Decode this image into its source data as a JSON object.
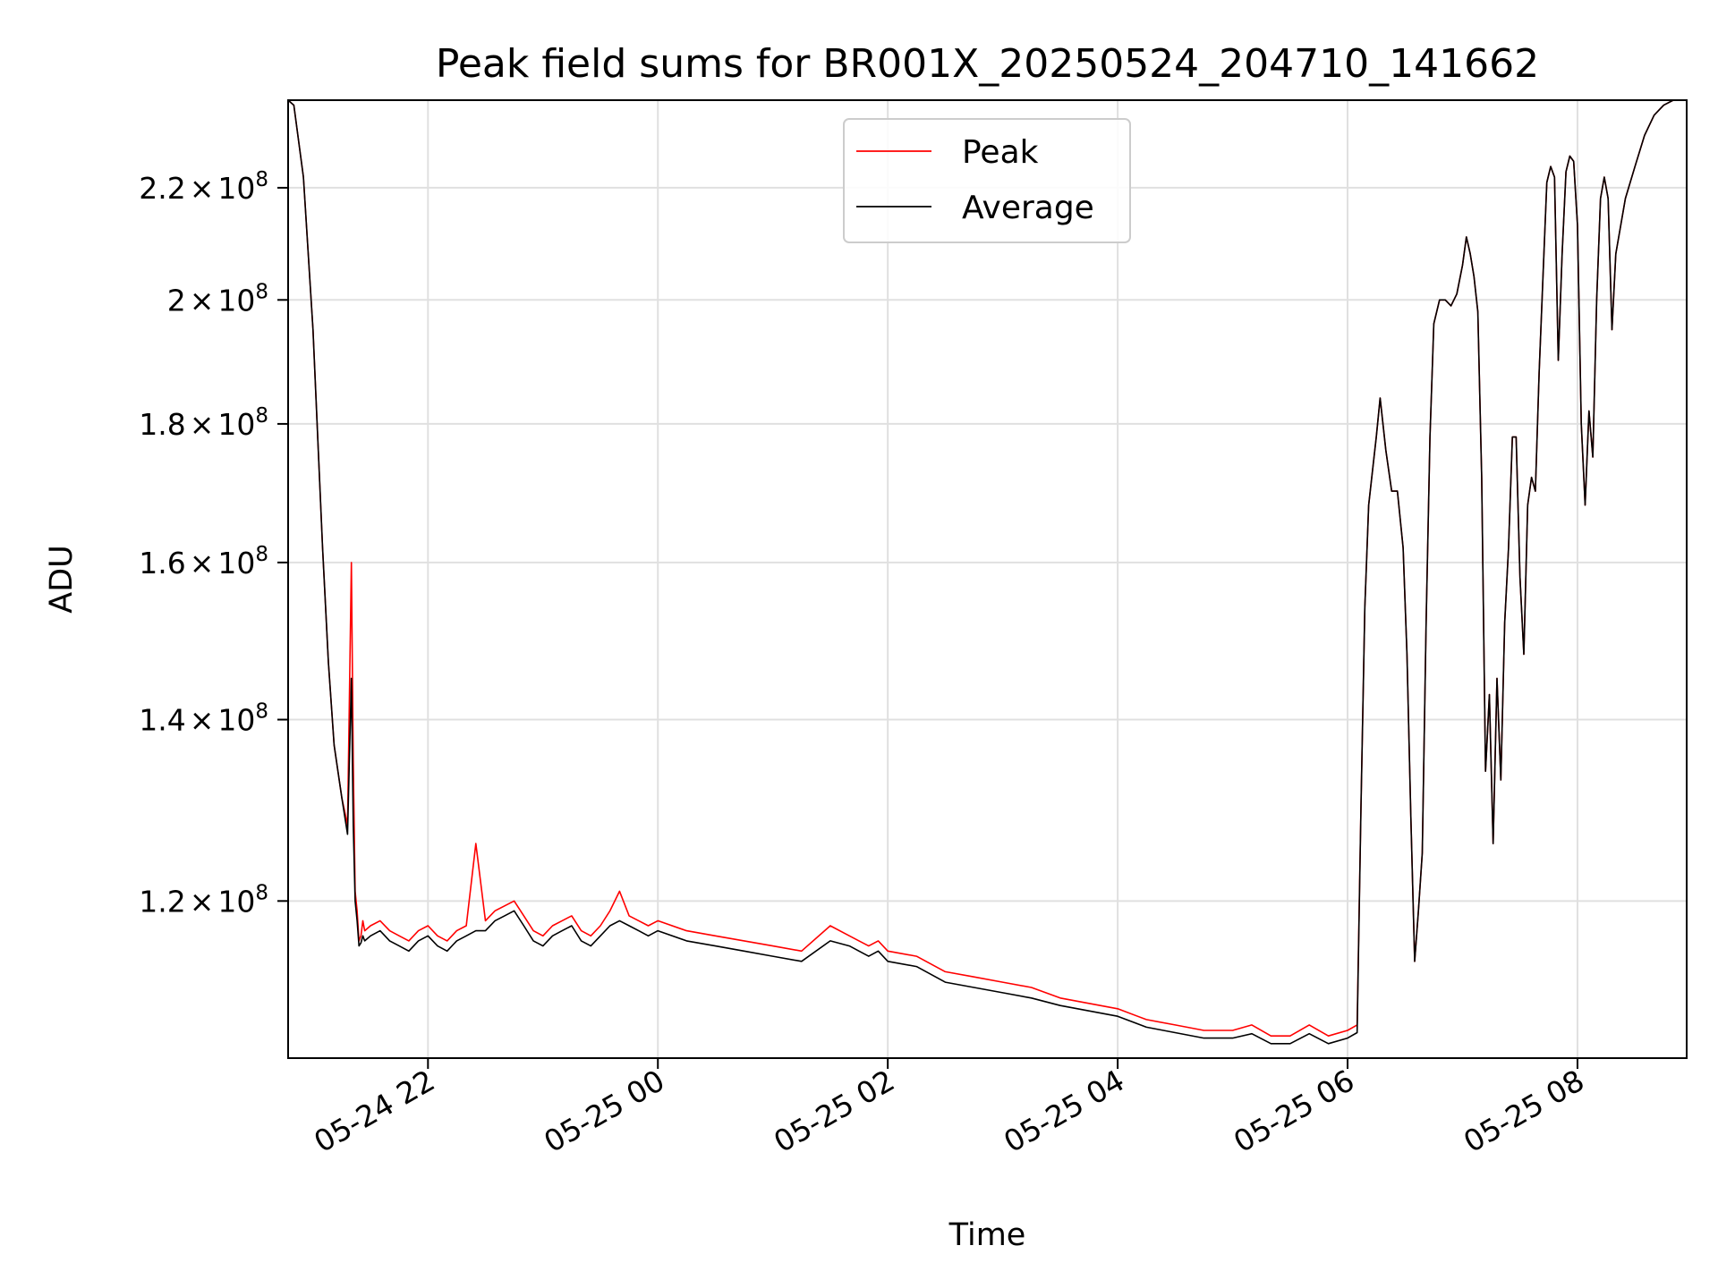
{
  "chart_data": {
    "type": "line",
    "title": "Peak field sums for BR001X_20250524_204710_141662",
    "xlabel": "Time",
    "ylabel": "ADU",
    "y_scale": "log",
    "xlim": [
      "2025-05-24 20:47",
      "2025-05-25 08:57"
    ],
    "ylim": [
      105000000,
      237000000
    ],
    "grid": true,
    "legend_placement": "upper center",
    "x_ticks": [
      "2025-05-24 22:00",
      "2025-05-25 00:00",
      "2025-05-25 02:00",
      "2025-05-25 04:00",
      "2025-05-25 06:00",
      "2025-05-25 08:00"
    ],
    "x_tick_labels": [
      "05-24 22",
      "05-25 00",
      "05-25 02",
      "05-25 04",
      "05-25 06",
      "05-25 08"
    ],
    "y_ticks": [
      {
        "value": 120000000,
        "mantissa": "1.2",
        "base": "10",
        "exp": "8"
      },
      {
        "value": 140000000,
        "mantissa": "1.4",
        "base": "10",
        "exp": "8"
      },
      {
        "value": 160000000,
        "mantissa": "1.6",
        "base": "10",
        "exp": "8"
      },
      {
        "value": 180000000,
        "mantissa": "1.8",
        "base": "10",
        "exp": "8"
      },
      {
        "value": 200000000,
        "mantissa": "2",
        "base": "10",
        "exp": "8"
      },
      {
        "value": 220000000,
        "mantissa": "2.2",
        "base": "10",
        "exp": "8"
      }
    ],
    "times_sep": "×",
    "series": [
      {
        "name": "Peak",
        "color": "#ff0000",
        "x": [
          "2025-05-24 20:47",
          "2025-05-24 20:50",
          "2025-05-24 20:55",
          "2025-05-24 21:00",
          "2025-05-24 21:05",
          "2025-05-24 21:08",
          "2025-05-24 21:11",
          "2025-05-24 21:15",
          "2025-05-24 21:18",
          "2025-05-24 21:20",
          "2025-05-24 21:21",
          "2025-05-24 21:22",
          "2025-05-24 21:23",
          "2025-05-24 21:24",
          "2025-05-24 21:25",
          "2025-05-24 21:26",
          "2025-05-24 21:27",
          "2025-05-24 21:30",
          "2025-05-24 21:35",
          "2025-05-24 21:40",
          "2025-05-24 21:45",
          "2025-05-24 21:50",
          "2025-05-24 21:55",
          "2025-05-24 22:00",
          "2025-05-24 22:05",
          "2025-05-24 22:10",
          "2025-05-24 22:15",
          "2025-05-24 22:20",
          "2025-05-24 22:25",
          "2025-05-24 22:30",
          "2025-05-24 22:35",
          "2025-05-24 22:40",
          "2025-05-24 22:45",
          "2025-05-24 22:50",
          "2025-05-24 22:55",
          "2025-05-24 23:00",
          "2025-05-24 23:05",
          "2025-05-24 23:10",
          "2025-05-24 23:15",
          "2025-05-24 23:20",
          "2025-05-24 23:25",
          "2025-05-24 23:30",
          "2025-05-24 23:35",
          "2025-05-24 23:40",
          "2025-05-24 23:45",
          "2025-05-24 23:50",
          "2025-05-24 23:55",
          "2025-05-25 00:00",
          "2025-05-25 00:15",
          "2025-05-25 00:30",
          "2025-05-25 00:45",
          "2025-05-25 01:00",
          "2025-05-25 01:15",
          "2025-05-25 01:30",
          "2025-05-25 01:40",
          "2025-05-25 01:45",
          "2025-05-25 01:50",
          "2025-05-25 01:55",
          "2025-05-25 02:00",
          "2025-05-25 02:15",
          "2025-05-25 02:30",
          "2025-05-25 02:45",
          "2025-05-25 03:00",
          "2025-05-25 03:15",
          "2025-05-25 03:30",
          "2025-05-25 03:45",
          "2025-05-25 04:00",
          "2025-05-25 04:15",
          "2025-05-25 04:30",
          "2025-05-25 04:45",
          "2025-05-25 05:00",
          "2025-05-25 05:10",
          "2025-05-25 05:20",
          "2025-05-25 05:30",
          "2025-05-25 05:40",
          "2025-05-25 05:50",
          "2025-05-25 06:00",
          "2025-05-25 06:05",
          "2025-05-25 06:07",
          "2025-05-25 06:09",
          "2025-05-25 06:11",
          "2025-05-25 06:13",
          "2025-05-25 06:15",
          "2025-05-25 06:17",
          "2025-05-25 06:20",
          "2025-05-25 06:23",
          "2025-05-25 06:26",
          "2025-05-25 06:29",
          "2025-05-25 06:31",
          "2025-05-25 06:33",
          "2025-05-25 06:35",
          "2025-05-25 06:37",
          "2025-05-25 06:39",
          "2025-05-25 06:41",
          "2025-05-25 06:43",
          "2025-05-25 06:45",
          "2025-05-25 06:48",
          "2025-05-25 06:51",
          "2025-05-25 06:54",
          "2025-05-25 06:57",
          "2025-05-25 07:00",
          "2025-05-25 07:02",
          "2025-05-25 07:04",
          "2025-05-25 07:06",
          "2025-05-25 07:08",
          "2025-05-25 07:10",
          "2025-05-25 07:12",
          "2025-05-25 07:14",
          "2025-05-25 07:16",
          "2025-05-25 07:18",
          "2025-05-25 07:20",
          "2025-05-25 07:22",
          "2025-05-25 07:24",
          "2025-05-25 07:26",
          "2025-05-25 07:28",
          "2025-05-25 07:30",
          "2025-05-25 07:32",
          "2025-05-25 07:34",
          "2025-05-25 07:36",
          "2025-05-25 07:38",
          "2025-05-25 07:40",
          "2025-05-25 07:42",
          "2025-05-25 07:44",
          "2025-05-25 07:46",
          "2025-05-25 07:48",
          "2025-05-25 07:50",
          "2025-05-25 07:52",
          "2025-05-25 07:54",
          "2025-05-25 07:56",
          "2025-05-25 07:58",
          "2025-05-25 08:00",
          "2025-05-25 08:02",
          "2025-05-25 08:04",
          "2025-05-25 08:06",
          "2025-05-25 08:08",
          "2025-05-25 08:10",
          "2025-05-25 08:12",
          "2025-05-25 08:14",
          "2025-05-25 08:16",
          "2025-05-25 08:18",
          "2025-05-25 08:20",
          "2025-05-25 08:25",
          "2025-05-25 08:30",
          "2025-05-25 08:35",
          "2025-05-25 08:40",
          "2025-05-25 08:45",
          "2025-05-25 08:50",
          "2025-05-25 08:55"
        ],
        "values": [
          237000000,
          236000000,
          222000000,
          195000000,
          162000000,
          147000000,
          137000000,
          131000000,
          128000000,
          160000000,
          135000000,
          121000000,
          119000000,
          116000000,
          116500000,
          118000000,
          117000000,
          117500000,
          118000000,
          117000000,
          116500000,
          116000000,
          117000000,
          117500000,
          116500000,
          116000000,
          117000000,
          117500000,
          126000000,
          118000000,
          119000000,
          119500000,
          120000000,
          118500000,
          117000000,
          116500000,
          117500000,
          118000000,
          118500000,
          117000000,
          116500000,
          117500000,
          119000000,
          121000000,
          118500000,
          118000000,
          117500000,
          118000000,
          117000000,
          116500000,
          116000000,
          115500000,
          115000000,
          117500000,
          116500000,
          116000000,
          115500000,
          116000000,
          115000000,
          114500000,
          113000000,
          112500000,
          112000000,
          111500000,
          110500000,
          110000000,
          109500000,
          108500000,
          108000000,
          107500000,
          107500000,
          108000000,
          107000000,
          107000000,
          108000000,
          107000000,
          107500000,
          108000000,
          130000000,
          154000000,
          168000000,
          173000000,
          178000000,
          184000000,
          176000000,
          170000000,
          170000000,
          162000000,
          148000000,
          129000000,
          114000000,
          119000000,
          125000000,
          152000000,
          178000000,
          196000000,
          200000000,
          200000000,
          199000000,
          201000000,
          206000000,
          211000000,
          208000000,
          204000000,
          198000000,
          172000000,
          134000000,
          143000000,
          126000000,
          145000000,
          133000000,
          152000000,
          162000000,
          178000000,
          178000000,
          158000000,
          148000000,
          168000000,
          172000000,
          170000000,
          188000000,
          204000000,
          221000000,
          224000000,
          222000000,
          190000000,
          208000000,
          223000000,
          226000000,
          225000000,
          213000000,
          180000000,
          168000000,
          182000000,
          175000000,
          200000000,
          218000000,
          222000000,
          218000000,
          195000000,
          208000000,
          218000000,
          224000000,
          230000000,
          234000000,
          236000000,
          237000000,
          238000000
        ]
      },
      {
        "name": "Average",
        "color": "#000000",
        "x": [
          "2025-05-24 20:47",
          "2025-05-24 20:50",
          "2025-05-24 20:55",
          "2025-05-24 21:00",
          "2025-05-24 21:05",
          "2025-05-24 21:08",
          "2025-05-24 21:11",
          "2025-05-24 21:15",
          "2025-05-24 21:18",
          "2025-05-24 21:20",
          "2025-05-24 21:21",
          "2025-05-24 21:22",
          "2025-05-24 21:23",
          "2025-05-24 21:24",
          "2025-05-24 21:25",
          "2025-05-24 21:26",
          "2025-05-24 21:27",
          "2025-05-24 21:30",
          "2025-05-24 21:35",
          "2025-05-24 21:40",
          "2025-05-24 21:45",
          "2025-05-24 21:50",
          "2025-05-24 21:55",
          "2025-05-24 22:00",
          "2025-05-24 22:05",
          "2025-05-24 22:10",
          "2025-05-24 22:15",
          "2025-05-24 22:20",
          "2025-05-24 22:25",
          "2025-05-24 22:30",
          "2025-05-24 22:35",
          "2025-05-24 22:40",
          "2025-05-24 22:45",
          "2025-05-24 22:50",
          "2025-05-24 22:55",
          "2025-05-24 23:00",
          "2025-05-24 23:05",
          "2025-05-24 23:10",
          "2025-05-24 23:15",
          "2025-05-24 23:20",
          "2025-05-24 23:25",
          "2025-05-24 23:30",
          "2025-05-24 23:35",
          "2025-05-24 23:40",
          "2025-05-24 23:45",
          "2025-05-24 23:50",
          "2025-05-24 23:55",
          "2025-05-25 00:00",
          "2025-05-25 00:15",
          "2025-05-25 00:30",
          "2025-05-25 00:45",
          "2025-05-25 01:00",
          "2025-05-25 01:15",
          "2025-05-25 01:30",
          "2025-05-25 01:40",
          "2025-05-25 01:45",
          "2025-05-25 01:50",
          "2025-05-25 01:55",
          "2025-05-25 02:00",
          "2025-05-25 02:15",
          "2025-05-25 02:30",
          "2025-05-25 02:45",
          "2025-05-25 03:00",
          "2025-05-25 03:15",
          "2025-05-25 03:30",
          "2025-05-25 03:45",
          "2025-05-25 04:00",
          "2025-05-25 04:15",
          "2025-05-25 04:30",
          "2025-05-25 04:45",
          "2025-05-25 05:00",
          "2025-05-25 05:10",
          "2025-05-25 05:20",
          "2025-05-25 05:30",
          "2025-05-25 05:40",
          "2025-05-25 05:50",
          "2025-05-25 06:00",
          "2025-05-25 06:05",
          "2025-05-25 06:07",
          "2025-05-25 06:09",
          "2025-05-25 06:11",
          "2025-05-25 06:13",
          "2025-05-25 06:15",
          "2025-05-25 06:17",
          "2025-05-25 06:20",
          "2025-05-25 06:23",
          "2025-05-25 06:26",
          "2025-05-25 06:29",
          "2025-05-25 06:31",
          "2025-05-25 06:33",
          "2025-05-25 06:35",
          "2025-05-25 06:37",
          "2025-05-25 06:39",
          "2025-05-25 06:41",
          "2025-05-25 06:43",
          "2025-05-25 06:45",
          "2025-05-25 06:48",
          "2025-05-25 06:51",
          "2025-05-25 06:54",
          "2025-05-25 06:57",
          "2025-05-25 07:00",
          "2025-05-25 07:02",
          "2025-05-25 07:04",
          "2025-05-25 07:06",
          "2025-05-25 07:08",
          "2025-05-25 07:10",
          "2025-05-25 07:12",
          "2025-05-25 07:14",
          "2025-05-25 07:16",
          "2025-05-25 07:18",
          "2025-05-25 07:20",
          "2025-05-25 07:22",
          "2025-05-25 07:24",
          "2025-05-25 07:26",
          "2025-05-25 07:28",
          "2025-05-25 07:30",
          "2025-05-25 07:32",
          "2025-05-25 07:34",
          "2025-05-25 07:36",
          "2025-05-25 07:38",
          "2025-05-25 07:40",
          "2025-05-25 07:42",
          "2025-05-25 07:44",
          "2025-05-25 07:46",
          "2025-05-25 07:48",
          "2025-05-25 07:50",
          "2025-05-25 07:52",
          "2025-05-25 07:54",
          "2025-05-25 07:56",
          "2025-05-25 07:58",
          "2025-05-25 08:00",
          "2025-05-25 08:02",
          "2025-05-25 08:04",
          "2025-05-25 08:06",
          "2025-05-25 08:08",
          "2025-05-25 08:10",
          "2025-05-25 08:12",
          "2025-05-25 08:14",
          "2025-05-25 08:16",
          "2025-05-25 08:18",
          "2025-05-25 08:20",
          "2025-05-25 08:25",
          "2025-05-25 08:30",
          "2025-05-25 08:35",
          "2025-05-25 08:40",
          "2025-05-25 08:45",
          "2025-05-25 08:50",
          "2025-05-25 08:55"
        ],
        "values": [
          237000000,
          236000000,
          222000000,
          195000000,
          162000000,
          147000000,
          137000000,
          131000000,
          127000000,
          145000000,
          128000000,
          120000000,
          118000000,
          115500000,
          115800000,
          116500000,
          116000000,
          116500000,
          117000000,
          116000000,
          115500000,
          115000000,
          116000000,
          116500000,
          115500000,
          115000000,
          116000000,
          116500000,
          117000000,
          117000000,
          118000000,
          118500000,
          119000000,
          117500000,
          116000000,
          115500000,
          116500000,
          117000000,
          117500000,
          116000000,
          115500000,
          116500000,
          117500000,
          118000000,
          117500000,
          117000000,
          116500000,
          117000000,
          116000000,
          115500000,
          115000000,
          114500000,
          114000000,
          116000000,
          115500000,
          115000000,
          114500000,
          115000000,
          114000000,
          113500000,
          112000000,
          111500000,
          111000000,
          110500000,
          109800000,
          109300000,
          108800000,
          107800000,
          107300000,
          106800000,
          106800000,
          107200000,
          106300000,
          106300000,
          107200000,
          106300000,
          106800000,
          107300000,
          130000000,
          154000000,
          168000000,
          173000000,
          178000000,
          184000000,
          176000000,
          170000000,
          170000000,
          162000000,
          148000000,
          129000000,
          114000000,
          119000000,
          125000000,
          152000000,
          178000000,
          196000000,
          200000000,
          200000000,
          199000000,
          201000000,
          206000000,
          211000000,
          208000000,
          204000000,
          198000000,
          172000000,
          134000000,
          143000000,
          126000000,
          145000000,
          133000000,
          152000000,
          162000000,
          178000000,
          178000000,
          158000000,
          148000000,
          168000000,
          172000000,
          170000000,
          188000000,
          204000000,
          221000000,
          224000000,
          222000000,
          190000000,
          208000000,
          223000000,
          226000000,
          225000000,
          213000000,
          180000000,
          168000000,
          182000000,
          175000000,
          200000000,
          218000000,
          222000000,
          218000000,
          195000000,
          208000000,
          218000000,
          224000000,
          230000000,
          234000000,
          236000000,
          237000000,
          238000000
        ]
      }
    ]
  }
}
